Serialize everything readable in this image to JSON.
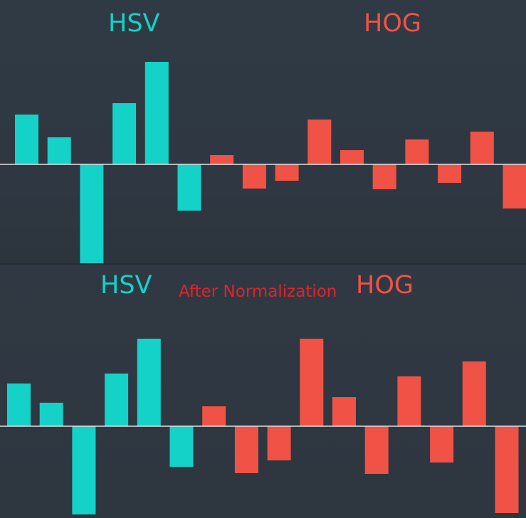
{
  "colors": {
    "hsv": "#14d2c8",
    "hog": "#f05245",
    "note": "#e0232b",
    "axis": "#dfe4e8",
    "background": "#2f3842"
  },
  "chart_data": [
    {
      "type": "bar",
      "group_labels": [
        "HSV",
        "HOG"
      ],
      "series": [
        {
          "name": "HSV",
          "values": [
            70,
            38,
            -142,
            86,
            144,
            -65
          ]
        },
        {
          "name": "HOG",
          "values": [
            13,
            -34,
            -23,
            63,
            20,
            -35,
            35,
            -26,
            46,
            -62
          ]
        }
      ],
      "grid": false
    },
    {
      "type": "bar",
      "annotation": "After Normalization",
      "group_labels": [
        "HSV",
        "HOG"
      ],
      "series": [
        {
          "name": "HSV",
          "values": [
            60,
            33,
            -124,
            74,
            123,
            -57
          ]
        },
        {
          "name": "HOG",
          "values": [
            28,
            -66,
            -48,
            123,
            41,
            -67,
            70,
            -51,
            91,
            -122
          ]
        }
      ],
      "grid": false
    }
  ]
}
